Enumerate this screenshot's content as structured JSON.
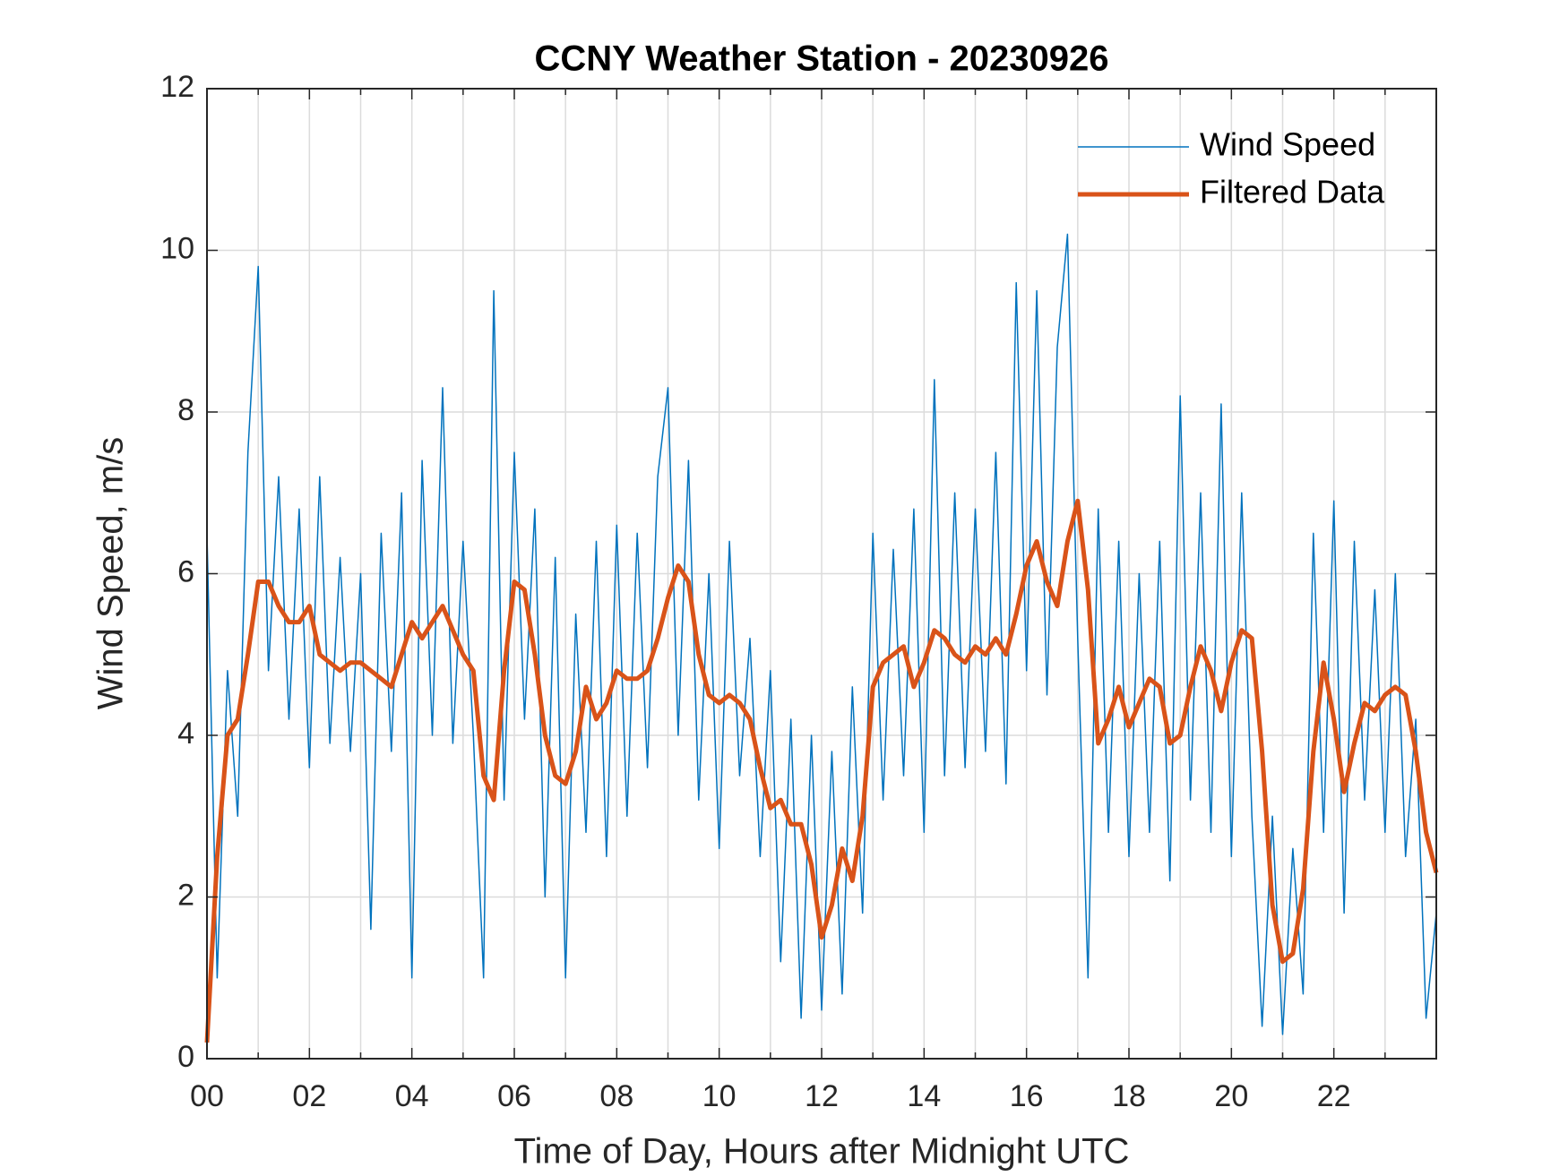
{
  "chart_data": {
    "type": "line",
    "title": "CCNY Weather Station - 20230926",
    "x_label": "Time of Day, Hours after Midnight UTC",
    "y_label": "Wind Speed, m/s",
    "xlim": [
      0,
      24
    ],
    "ylim": [
      0,
      12
    ],
    "xticks": [
      {
        "value": 0,
        "label": "00"
      },
      {
        "value": 2,
        "label": "02"
      },
      {
        "value": 4,
        "label": "04"
      },
      {
        "value": 6,
        "label": "06"
      },
      {
        "value": 8,
        "label": "08"
      },
      10,
      12,
      14,
      16,
      18,
      20,
      22
    ],
    "xminorticks": [
      1,
      3,
      5,
      7,
      9,
      11,
      13,
      15,
      17,
      19,
      21,
      23
    ],
    "yticks": [
      0,
      2,
      4,
      6,
      8,
      10,
      12
    ],
    "grid": true,
    "legend": "upper right",
    "x": [
      0,
      0.2,
      0.4,
      0.6,
      0.8,
      1,
      1.2,
      1.4,
      1.6,
      1.8,
      2,
      2.2,
      2.4,
      2.6,
      2.8,
      3,
      3.2,
      3.4,
      3.6,
      3.8,
      4,
      4.2,
      4.4,
      4.6,
      4.8,
      5,
      5.2,
      5.4,
      5.6,
      5.8,
      6,
      6.2,
      6.4,
      6.6,
      6.8,
      7,
      7.2,
      7.4,
      7.6,
      7.8,
      8,
      8.2,
      8.4,
      8.6,
      8.8,
      9,
      9.2,
      9.4,
      9.6,
      9.8,
      10,
      10.2,
      10.4,
      10.6,
      10.8,
      11,
      11.2,
      11.4,
      11.6,
      11.8,
      12,
      12.2,
      12.4,
      12.6,
      12.8,
      13,
      13.2,
      13.4,
      13.6,
      13.8,
      14,
      14.2,
      14.4,
      14.6,
      14.8,
      15,
      15.2,
      15.4,
      15.6,
      15.8,
      16,
      16.2,
      16.4,
      16.6,
      16.8,
      17,
      17.2,
      17.4,
      17.6,
      17.8,
      18,
      18.2,
      18.4,
      18.6,
      18.8,
      19,
      19.2,
      19.4,
      19.6,
      19.8,
      20,
      20.2,
      20.4,
      20.6,
      20.8,
      21,
      21.2,
      21.4,
      21.6,
      21.8,
      22,
      22.2,
      22.4,
      22.6,
      22.8,
      23,
      23.2,
      23.4,
      23.6,
      23.8,
      24
    ],
    "series": [
      {
        "name": "Wind Speed",
        "color": "#0072bd",
        "width": 1.5,
        "values": [
          6.5,
          1.0,
          4.8,
          3.0,
          7.5,
          9.8,
          4.8,
          7.2,
          4.2,
          6.8,
          3.6,
          7.2,
          3.9,
          6.2,
          3.8,
          6.0,
          1.6,
          6.5,
          3.8,
          7.0,
          1.0,
          7.4,
          4.0,
          8.3,
          3.9,
          6.4,
          4.0,
          1.0,
          9.5,
          3.2,
          7.5,
          4.2,
          6.8,
          2.0,
          6.2,
          1.0,
          5.5,
          2.8,
          6.4,
          2.5,
          6.6,
          3.0,
          6.5,
          3.6,
          7.2,
          8.3,
          4.0,
          7.4,
          3.2,
          6.0,
          2.6,
          6.4,
          3.5,
          5.2,
          2.5,
          4.8,
          1.2,
          4.2,
          0.5,
          4.0,
          0.6,
          3.8,
          0.8,
          4.6,
          1.8,
          6.5,
          3.2,
          6.3,
          3.5,
          6.8,
          2.8,
          8.4,
          3.5,
          7.0,
          3.6,
          6.8,
          3.8,
          7.5,
          3.4,
          9.6,
          4.8,
          9.5,
          4.5,
          8.8,
          10.2,
          5.2,
          1.0,
          6.8,
          2.8,
          6.4,
          2.5,
          6.0,
          2.8,
          6.4,
          2.2,
          8.2,
          3.2,
          7.0,
          2.8,
          8.1,
          2.5,
          7.0,
          3.0,
          0.4,
          3.0,
          0.3,
          2.6,
          0.8,
          6.5,
          2.8,
          6.9,
          1.8,
          6.4,
          3.2,
          5.8,
          2.8,
          6.0,
          2.5,
          4.2,
          0.5,
          1.8
        ]
      },
      {
        "name": "Filtered Data",
        "color": "#d95319",
        "width": 5,
        "values": [
          0.2,
          2.5,
          4.0,
          4.2,
          5.0,
          5.9,
          5.9,
          5.6,
          5.4,
          5.4,
          5.6,
          5.0,
          4.9,
          4.8,
          4.9,
          4.9,
          4.8,
          4.7,
          4.6,
          5.0,
          5.4,
          5.2,
          5.4,
          5.6,
          5.3,
          5.0,
          4.8,
          3.5,
          3.2,
          4.8,
          5.9,
          5.8,
          5.0,
          4.0,
          3.5,
          3.4,
          3.8,
          4.6,
          4.2,
          4.4,
          4.8,
          4.7,
          4.7,
          4.8,
          5.2,
          5.7,
          6.1,
          5.9,
          5.0,
          4.5,
          4.4,
          4.5,
          4.4,
          4.2,
          3.6,
          3.1,
          3.2,
          2.9,
          2.9,
          2.4,
          1.5,
          1.9,
          2.6,
          2.2,
          3.0,
          4.6,
          4.9,
          5.0,
          5.1,
          4.6,
          4.9,
          5.3,
          5.2,
          5.0,
          4.9,
          5.1,
          5.0,
          5.2,
          5.0,
          5.5,
          6.1,
          6.4,
          5.9,
          5.6,
          6.4,
          6.9,
          5.8,
          3.9,
          4.2,
          4.6,
          4.1,
          4.4,
          4.7,
          4.6,
          3.9,
          4.0,
          4.6,
          5.1,
          4.8,
          4.3,
          4.9,
          5.3,
          5.2,
          3.8,
          1.9,
          1.2,
          1.3,
          2.1,
          3.8,
          4.9,
          4.2,
          3.3,
          3.9,
          4.4,
          4.3,
          4.5,
          4.6,
          4.5,
          3.8,
          2.8,
          2.3
        ]
      }
    ]
  }
}
